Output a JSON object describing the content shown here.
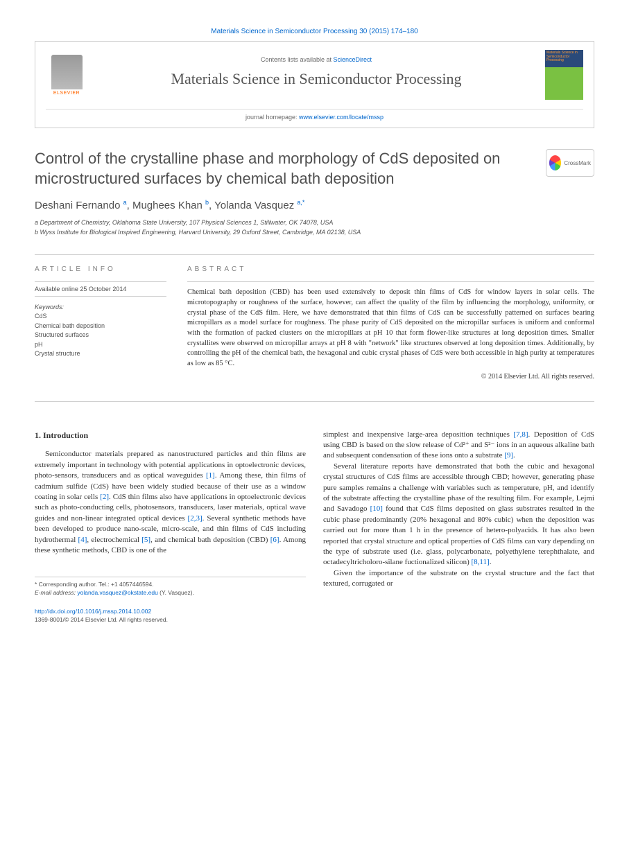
{
  "citation": "Materials Science in Semiconductor Processing 30 (2015) 174–180",
  "header": {
    "contents_prefix": "Contents lists available at ",
    "contents_link": "ScienceDirect",
    "journal_name": "Materials Science in Semiconductor Processing",
    "homepage_prefix": "journal homepage: ",
    "homepage_url": "www.elsevier.com/locate/mssp",
    "publisher_label": "ELSEVIER",
    "cover_text": "Materials Science in Semiconductor Processing"
  },
  "article": {
    "title": "Control of the crystalline phase and morphology of CdS deposited on microstructured surfaces by chemical bath deposition",
    "crossmark_label": "CrossMark",
    "authors_html": "Deshani Fernando <sup>a</sup>, Mughees Khan <sup>b</sup>, Yolanda Vasquez <sup>a,*</sup>",
    "affiliations": {
      "a": "a Department of Chemistry, Oklahoma State University, 107 Physical Sciences 1, Stillwater, OK 74078, USA",
      "b": "b Wyss Institute for Biological Inspired Engineering, Harvard University, 29 Oxford Street, Cambridge, MA 02138, USA"
    }
  },
  "info": {
    "heading": "article info",
    "online": "Available online 25 October 2014",
    "keywords_label": "Keywords:",
    "keywords": [
      "CdS",
      "Chemical bath deposition",
      "Structured surfaces",
      "pH",
      "Crystal structure"
    ]
  },
  "abstract": {
    "heading": "abstract",
    "text": "Chemical bath deposition (CBD) has been used extensively to deposit thin films of CdS for window layers in solar cells. The microtopography or roughness of the surface, however, can affect the quality of the film by influencing the morphology, uniformity, or crystal phase of the CdS film. Here, we have demonstrated that thin films of CdS can be successfully patterned on surfaces bearing micropillars as a model surface for roughness. The phase purity of CdS deposited on the micropillar surfaces is uniform and conformal with the formation of packed clusters on the micropillars at pH 10 that form flower-like structures at long deposition times. Smaller crystallites were observed on micropillar arrays at pH 8 with \"network\" like structures observed at long deposition times. Additionally, by controlling the pH of the chemical bath, the hexagonal and cubic crystal phases of CdS were both accessible in high purity at temperatures as low as 85 °C.",
    "copyright": "© 2014 Elsevier Ltd. All rights reserved."
  },
  "body": {
    "intro_heading": "1. Introduction",
    "col1_p1_a": "Semiconductor materials prepared as nanostructured particles and thin films are extremely important in technology with potential applications in optoelectronic devices, photo-sensors, transducers and as optical waveguides ",
    "ref1": "[1]",
    "col1_p1_b": ". Among these, thin films of cadmium sulfide (CdS) have been widely studied because of their use as a window coating in solar cells ",
    "ref2": "[2]",
    "col1_p1_c": ". CdS thin films also have applications in optoelectronic devices such as photo-conducting cells, photosensors, transducers, laser materials, optical wave guides and non-linear integrated optical devices ",
    "ref23": "[2,3]",
    "col1_p1_d": ". Several synthetic methods have been developed to produce nano-scale, micro-scale, and thin films of CdS including hydrothermal ",
    "ref4": "[4]",
    "col1_p1_e": ", electrochemical ",
    "ref5": "[5]",
    "col1_p1_f": ", and chemical bath deposition (CBD) ",
    "ref6": "[6]",
    "col1_p1_g": ". Among these synthetic methods, CBD is one of the",
    "col2_p1_a": "simplest and inexpensive large-area deposition techniques ",
    "ref78": "[7,8]",
    "col2_p1_b": ". Deposition of CdS using CBD is based on the slow release of Cd²⁺ and S²⁻ ions in an aqueous alkaline bath and subsequent condensation of these ions onto a substrate ",
    "ref9": "[9]",
    "col2_p1_c": ".",
    "col2_p2_a": "Several literature reports have demonstrated that both the cubic and hexagonal crystal structures of CdS films are accessible through CBD; however, generating phase pure samples remains a challenge with variables such as temperature, pH, and identify of the substrate affecting the crystalline phase of the resulting film. For example, Lejmi and Savadogo ",
    "ref10": "[10]",
    "col2_p2_b": " found that CdS films deposited on glass substrates resulted in the cubic phase predominantly (20% hexagonal and 80% cubic) when the deposition was carried out for more than 1 h in the presence of hetero-polyacids. It has also been reported that crystal structure and optical properties of CdS films can vary depending on the type of substrate used (i.e. glass, polycarbonate, polyethylene terephthalate, and octadecyltricholoro-silane fuctionalized silicon) ",
    "ref811": "[8,11]",
    "col2_p2_c": ".",
    "col2_p3": "Given the importance of the substrate on the crystal structure and the fact that textured, corrugated or"
  },
  "footnote": {
    "corresponding": "* Corresponding author. Tel.: +1 4057446594.",
    "email_label": "E-mail address: ",
    "email": "yolanda.vasquez@okstate.edu",
    "email_suffix": " (Y. Vasquez)."
  },
  "footer": {
    "doi": "http://dx.doi.org/10.1016/j.mssp.2014.10.002",
    "issn_line": "1369-8001/© 2014 Elsevier Ltd. All rights reserved."
  },
  "colors": {
    "link": "#0066cc",
    "text": "#333333",
    "muted": "#808080",
    "orange": "#ff6600"
  }
}
